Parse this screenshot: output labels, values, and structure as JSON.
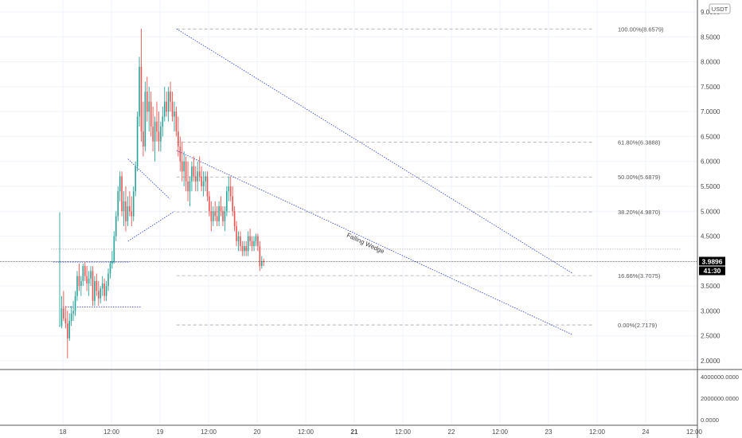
{
  "currency_label": "USDT",
  "colors": {
    "up": "#26a69a",
    "down": "#ef5350",
    "pattern_line": "#3f51d8",
    "fib_line": "#a9a9a9",
    "grid": "#f0f3fa",
    "axis_text": "#4a4a4a",
    "price_tag_bg": "#000000",
    "price_tag_text": "#ffffff"
  },
  "price_tag": {
    "value": "3.9896",
    "countdown": "41:30"
  },
  "pattern_label": "Falling Wedge",
  "fib_levels": [
    {
      "label": "100.00%(8.6579)",
      "value": 8.6579
    },
    {
      "label": "61.80%(6.3888)",
      "value": 6.3888
    },
    {
      "label": "50.00%(5.6879)",
      "value": 5.6879
    },
    {
      "label": "38.20%(4.9870)",
      "value": 4.987
    },
    {
      "label": "16.66%(3.7075)",
      "value": 3.7075
    },
    {
      "label": "0.00%(2.7179)",
      "value": 2.7179
    }
  ],
  "chart_data": {
    "type": "candlestick",
    "price_axis": {
      "range": [
        1.8,
        9.2
      ],
      "ticks": [
        {
          "value": 9.0,
          "label": "9.0000"
        },
        {
          "value": 8.5,
          "label": "8.5000"
        },
        {
          "value": 8.0,
          "label": "8.0000"
        },
        {
          "value": 7.5,
          "label": "7.5000"
        },
        {
          "value": 7.0,
          "label": "7.0000"
        },
        {
          "value": 6.5,
          "label": "6.5000"
        },
        {
          "value": 6.0,
          "label": "6.0000"
        },
        {
          "value": 5.5,
          "label": "5.5000"
        },
        {
          "value": 5.0,
          "label": "5.0000"
        },
        {
          "value": 4.5,
          "label": "4.5000"
        },
        {
          "value": 4.0,
          "label": "4.0000"
        },
        {
          "value": 3.5,
          "label": "3.5000"
        },
        {
          "value": 3.0,
          "label": "3.0000"
        },
        {
          "value": 2.5,
          "label": "2.5000"
        },
        {
          "value": 2.0,
          "label": "2.0000"
        }
      ]
    },
    "volume_axis": {
      "range": [
        -300000,
        5500000
      ],
      "ticks": [
        {
          "value": 4000000,
          "label": "4000000.0000"
        },
        {
          "value": 2000000,
          "label": "2000000.0000"
        },
        {
          "value": 0,
          "label": "0.0000"
        }
      ]
    },
    "time_axis": {
      "range": [
        -0.12,
        6.37
      ],
      "ticks": [
        {
          "t": 0.0,
          "label": "18",
          "bold": false
        },
        {
          "t": 0.5,
          "label": "12:00",
          "bold": false
        },
        {
          "t": 1.0,
          "label": "19",
          "bold": false
        },
        {
          "t": 1.5,
          "label": "12:00",
          "bold": false
        },
        {
          "t": 2.0,
          "label": "20",
          "bold": false
        },
        {
          "t": 2.5,
          "label": "12:00",
          "bold": false
        },
        {
          "t": 3.0,
          "label": "21",
          "bold": true
        },
        {
          "t": 3.5,
          "label": "12:00",
          "bold": false
        },
        {
          "t": 4.0,
          "label": "22",
          "bold": false
        },
        {
          "t": 4.5,
          "label": "12:00",
          "bold": false
        },
        {
          "t": 5.0,
          "label": "23",
          "bold": false
        },
        {
          "t": 5.5,
          "label": "12:00",
          "bold": false
        },
        {
          "t": 6.0,
          "label": "24",
          "bold": false
        },
        {
          "t": 6.5,
          "label": "12:00",
          "bold": false
        }
      ]
    },
    "last_price": 3.9896,
    "fib_x_range": [
      1.17,
      5.45
    ],
    "trend_lines": [
      {
        "name": "wedge-upper-line",
        "dashed": true,
        "from": [
          1.17,
          8.66
        ],
        "to": [
          5.25,
          3.75
        ]
      },
      {
        "name": "wedge-lower-line",
        "dashed": true,
        "from": [
          1.17,
          6.22
        ],
        "to": [
          5.25,
          2.52
        ]
      },
      {
        "name": "pennant-upper-line",
        "dashed": true,
        "from": [
          0.67,
          6.05
        ],
        "to": [
          1.1,
          5.25
        ]
      },
      {
        "name": "pennant-lower-line",
        "dashed": true,
        "from": [
          0.67,
          4.4
        ],
        "to": [
          1.15,
          5.0
        ]
      },
      {
        "name": "range-top-line",
        "dashed": true,
        "from": [
          -0.1,
          3.98
        ],
        "to": [
          0.69,
          3.98
        ]
      },
      {
        "name": "range-bottom-line",
        "dashed": true,
        "from": [
          0.0,
          3.08
        ],
        "to": [
          0.8,
          3.08
        ]
      },
      {
        "name": "resistance-line",
        "dashed": true,
        "from": [
          -0.12,
          4.24
        ],
        "to": [
          6.37,
          4.24
        ]
      }
    ],
    "candles": [
      [
        -0.24,
        2.7,
        4.98,
        2.7,
        2.7
      ],
      [
        -0.22,
        2.7,
        3.3,
        2.65,
        3.05
      ],
      [
        -0.2,
        3.05,
        3.4,
        2.8,
        2.85
      ],
      [
        -0.18,
        2.85,
        3.1,
        2.65,
        2.75
      ],
      [
        -0.16,
        2.75,
        3.0,
        2.05,
        2.45
      ],
      [
        -0.14,
        2.45,
        2.95,
        2.4,
        2.8
      ],
      [
        -0.12,
        2.8,
        3.1,
        2.7,
        2.95
      ],
      [
        -0.1,
        2.95,
        3.2,
        2.8,
        3.0
      ],
      [
        -0.08,
        3.0,
        3.4,
        2.9,
        3.3
      ],
      [
        -0.06,
        3.3,
        3.8,
        3.2,
        3.7
      ],
      [
        -0.04,
        3.7,
        3.95,
        3.4,
        3.5
      ],
      [
        -0.02,
        3.5,
        3.7,
        3.3,
        3.6
      ],
      [
        0.0,
        3.6,
        3.95,
        3.5,
        3.9
      ],
      [
        0.02,
        3.9,
        3.98,
        3.6,
        3.7
      ],
      [
        0.04,
        3.7,
        3.9,
        3.4,
        3.55
      ],
      [
        0.06,
        3.55,
        3.8,
        3.3,
        3.65
      ],
      [
        0.08,
        3.65,
        3.9,
        3.5,
        3.8
      ],
      [
        0.1,
        3.8,
        3.9,
        3.1,
        3.2
      ],
      [
        0.12,
        3.2,
        3.7,
        3.1,
        3.6
      ],
      [
        0.14,
        3.6,
        3.75,
        3.3,
        3.4
      ],
      [
        0.16,
        3.4,
        3.6,
        3.1,
        3.25
      ],
      [
        0.18,
        3.25,
        3.5,
        3.15,
        3.45
      ],
      [
        0.2,
        3.45,
        3.7,
        3.3,
        3.55
      ],
      [
        0.22,
        3.55,
        3.65,
        3.2,
        3.3
      ],
      [
        0.24,
        3.3,
        3.6,
        3.2,
        3.5
      ],
      [
        0.26,
        3.5,
        3.85,
        3.4,
        3.75
      ],
      [
        0.28,
        3.75,
        4.0,
        3.65,
        3.95
      ],
      [
        0.3,
        3.95,
        4.2,
        3.85,
        4.0
      ],
      [
        0.32,
        4.0,
        4.6,
        3.95,
        4.5
      ],
      [
        0.34,
        4.5,
        5.0,
        4.4,
        4.9
      ],
      [
        0.36,
        4.9,
        5.5,
        4.8,
        5.4
      ],
      [
        0.38,
        5.4,
        5.8,
        5.2,
        5.7
      ],
      [
        0.4,
        5.7,
        5.8,
        4.9,
        5.0
      ],
      [
        0.42,
        5.0,
        5.4,
        4.7,
        5.2
      ],
      [
        0.44,
        5.2,
        5.5,
        4.6,
        4.8
      ],
      [
        0.46,
        4.8,
        5.3,
        4.7,
        5.1
      ],
      [
        0.48,
        5.1,
        5.4,
        4.9,
        5.0
      ],
      [
        0.5,
        5.0,
        5.3,
        4.7,
        4.9
      ],
      [
        0.52,
        4.9,
        5.5,
        4.8,
        5.4
      ],
      [
        0.54,
        5.4,
        6.0,
        5.3,
        5.9
      ],
      [
        0.56,
        5.9,
        7.0,
        5.8,
        6.9
      ],
      [
        0.58,
        6.9,
        8.1,
        6.7,
        7.9
      ],
      [
        0.6,
        7.9,
        8.66,
        6.4,
        6.6
      ],
      [
        0.62,
        6.6,
        7.2,
        6.1,
        6.3
      ],
      [
        0.64,
        6.3,
        7.6,
        6.2,
        7.4
      ],
      [
        0.66,
        7.4,
        7.7,
        6.8,
        7.0
      ],
      [
        0.68,
        7.0,
        7.5,
        6.6,
        7.2
      ],
      [
        0.7,
        7.2,
        7.4,
        6.5,
        6.7
      ],
      [
        0.72,
        6.7,
        7.1,
        6.2,
        6.4
      ],
      [
        0.74,
        6.4,
        6.9,
        6.0,
        6.8
      ],
      [
        0.76,
        6.8,
        7.2,
        6.4,
        6.6
      ],
      [
        0.78,
        6.6,
        7.0,
        6.2,
        6.4
      ],
      [
        0.8,
        6.4,
        6.8,
        6.2,
        6.7
      ],
      [
        0.82,
        6.7,
        7.1,
        6.5,
        6.9
      ],
      [
        0.84,
        6.9,
        7.5,
        6.8,
        7.2
      ],
      [
        0.86,
        7.2,
        7.4,
        6.9,
        7.0
      ],
      [
        0.88,
        7.0,
        7.5,
        6.8,
        7.4
      ],
      [
        0.9,
        7.4,
        7.6,
        7.0,
        7.2
      ],
      [
        0.92,
        7.2,
        7.4,
        6.8,
        6.9
      ],
      [
        0.94,
        6.9,
        7.2,
        6.6,
        7.0
      ],
      [
        0.96,
        7.0,
        7.1,
        6.5,
        6.6
      ],
      [
        0.98,
        6.6,
        6.9,
        6.1,
        6.3
      ],
      [
        1.0,
        6.3,
        6.5,
        5.8,
        6.0
      ],
      [
        1.02,
        6.0,
        6.4,
        5.6,
        5.8
      ],
      [
        1.04,
        5.8,
        6.2,
        5.5,
        6.0
      ],
      [
        1.06,
        6.0,
        6.1,
        5.4,
        5.6
      ],
      [
        1.08,
        5.6,
        6.0,
        5.2,
        5.4
      ],
      [
        1.1,
        5.4,
        5.7,
        5.1,
        5.6
      ],
      [
        1.12,
        5.6,
        6.0,
        5.4,
        5.9
      ],
      [
        1.14,
        5.9,
        6.1,
        5.6,
        5.7
      ],
      [
        1.16,
        5.7,
        5.9,
        5.4,
        5.6
      ],
      [
        1.18,
        5.6,
        6.0,
        5.4,
        5.8
      ],
      [
        1.2,
        5.8,
        6.1,
        5.6,
        5.7
      ],
      [
        1.22,
        5.7,
        5.9,
        5.4,
        5.5
      ],
      [
        1.24,
        5.5,
        5.8,
        5.3,
        5.6
      ],
      [
        1.26,
        5.6,
        5.8,
        5.4,
        5.7
      ],
      [
        1.28,
        5.7,
        5.8,
        5.2,
        5.3
      ],
      [
        1.3,
        5.3,
        5.4,
        4.9,
        5.0
      ],
      [
        1.32,
        5.0,
        5.2,
        4.6,
        4.8
      ],
      [
        1.34,
        4.8,
        5.1,
        4.7,
        5.0
      ],
      [
        1.36,
        5.0,
        5.2,
        4.8,
        4.9
      ],
      [
        1.38,
        4.9,
        5.1,
        4.7,
        4.8
      ],
      [
        1.4,
        4.8,
        5.2,
        4.7,
        5.1
      ],
      [
        1.42,
        5.1,
        5.3,
        4.9,
        5.0
      ],
      [
        1.44,
        5.0,
        5.1,
        4.7,
        4.8
      ],
      [
        1.46,
        4.8,
        5.1,
        4.6,
        5.0
      ],
      [
        1.48,
        5.0,
        5.5,
        4.9,
        5.4
      ],
      [
        1.5,
        5.4,
        5.7,
        5.2,
        5.5
      ],
      [
        1.52,
        5.5,
        5.7,
        5.2,
        5.3
      ],
      [
        1.54,
        5.3,
        5.5,
        4.9,
        5.0
      ],
      [
        1.56,
        5.0,
        5.1,
        4.6,
        4.7
      ],
      [
        1.58,
        4.7,
        4.8,
        4.3,
        4.4
      ],
      [
        1.6,
        4.4,
        4.6,
        4.2,
        4.5
      ],
      [
        1.62,
        4.5,
        4.6,
        4.2,
        4.3
      ],
      [
        1.64,
        4.3,
        4.4,
        4.1,
        4.2
      ],
      [
        1.66,
        4.2,
        4.4,
        4.1,
        4.3
      ],
      [
        1.68,
        4.3,
        4.4,
        4.1,
        4.2
      ],
      [
        1.7,
        4.2,
        4.6,
        4.1,
        4.5
      ],
      [
        1.72,
        4.5,
        4.65,
        4.3,
        4.4
      ],
      [
        1.74,
        4.4,
        4.5,
        4.2,
        4.3
      ],
      [
        1.76,
        4.3,
        4.5,
        4.2,
        4.4
      ],
      [
        1.78,
        4.4,
        4.55,
        4.3,
        4.5
      ],
      [
        1.8,
        4.5,
        4.55,
        4.2,
        4.3
      ],
      [
        1.82,
        4.3,
        4.4,
        3.8,
        3.9
      ],
      [
        1.84,
        3.9,
        4.1,
        3.85,
        4.0
      ],
      [
        1.86,
        4.0,
        4.05,
        3.9,
        3.99
      ]
    ]
  }
}
